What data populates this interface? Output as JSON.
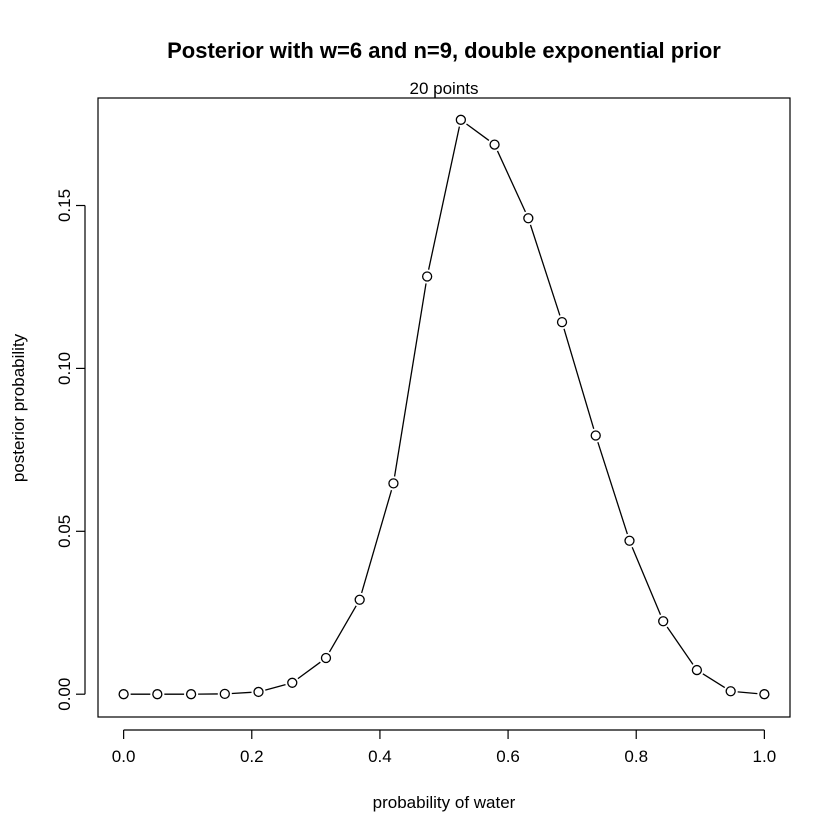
{
  "chart_data": {
    "type": "line",
    "title": "Posterior with w=6 and n=9, double exponential prior",
    "subtitle": "20 points",
    "xlabel": "probability of water",
    "ylabel": "posterior probability",
    "xlim": [
      -0.04,
      1.04
    ],
    "ylim": [
      -0.007,
      0.183
    ],
    "x_ticks": [
      0.0,
      0.2,
      0.4,
      0.6,
      0.8,
      1.0
    ],
    "x_tick_labels": [
      "0.0",
      "0.2",
      "0.4",
      "0.6",
      "0.8",
      "1.0"
    ],
    "y_ticks": [
      0.0,
      0.05,
      0.1,
      0.15
    ],
    "y_tick_labels": [
      "0.00",
      "0.05",
      "0.10",
      "0.15"
    ],
    "grid": false,
    "markers": "open-circle",
    "series": [
      {
        "color": "#000000",
        "x": [
          0.0,
          0.0526,
          0.1053,
          0.1579,
          0.2105,
          0.2632,
          0.3158,
          0.3684,
          0.4211,
          0.4737,
          0.5263,
          0.5789,
          0.6316,
          0.6842,
          0.7368,
          0.7895,
          0.8421,
          0.8947,
          0.9474,
          1.0
        ],
        "y": [
          0.0,
          0.0,
          0.0,
          0.0001,
          0.0007,
          0.0035,
          0.0111,
          0.029,
          0.0647,
          0.1282,
          0.1763,
          0.1687,
          0.1461,
          0.1142,
          0.0794,
          0.0471,
          0.0224,
          0.0074,
          0.0009,
          0.0
        ]
      }
    ]
  }
}
